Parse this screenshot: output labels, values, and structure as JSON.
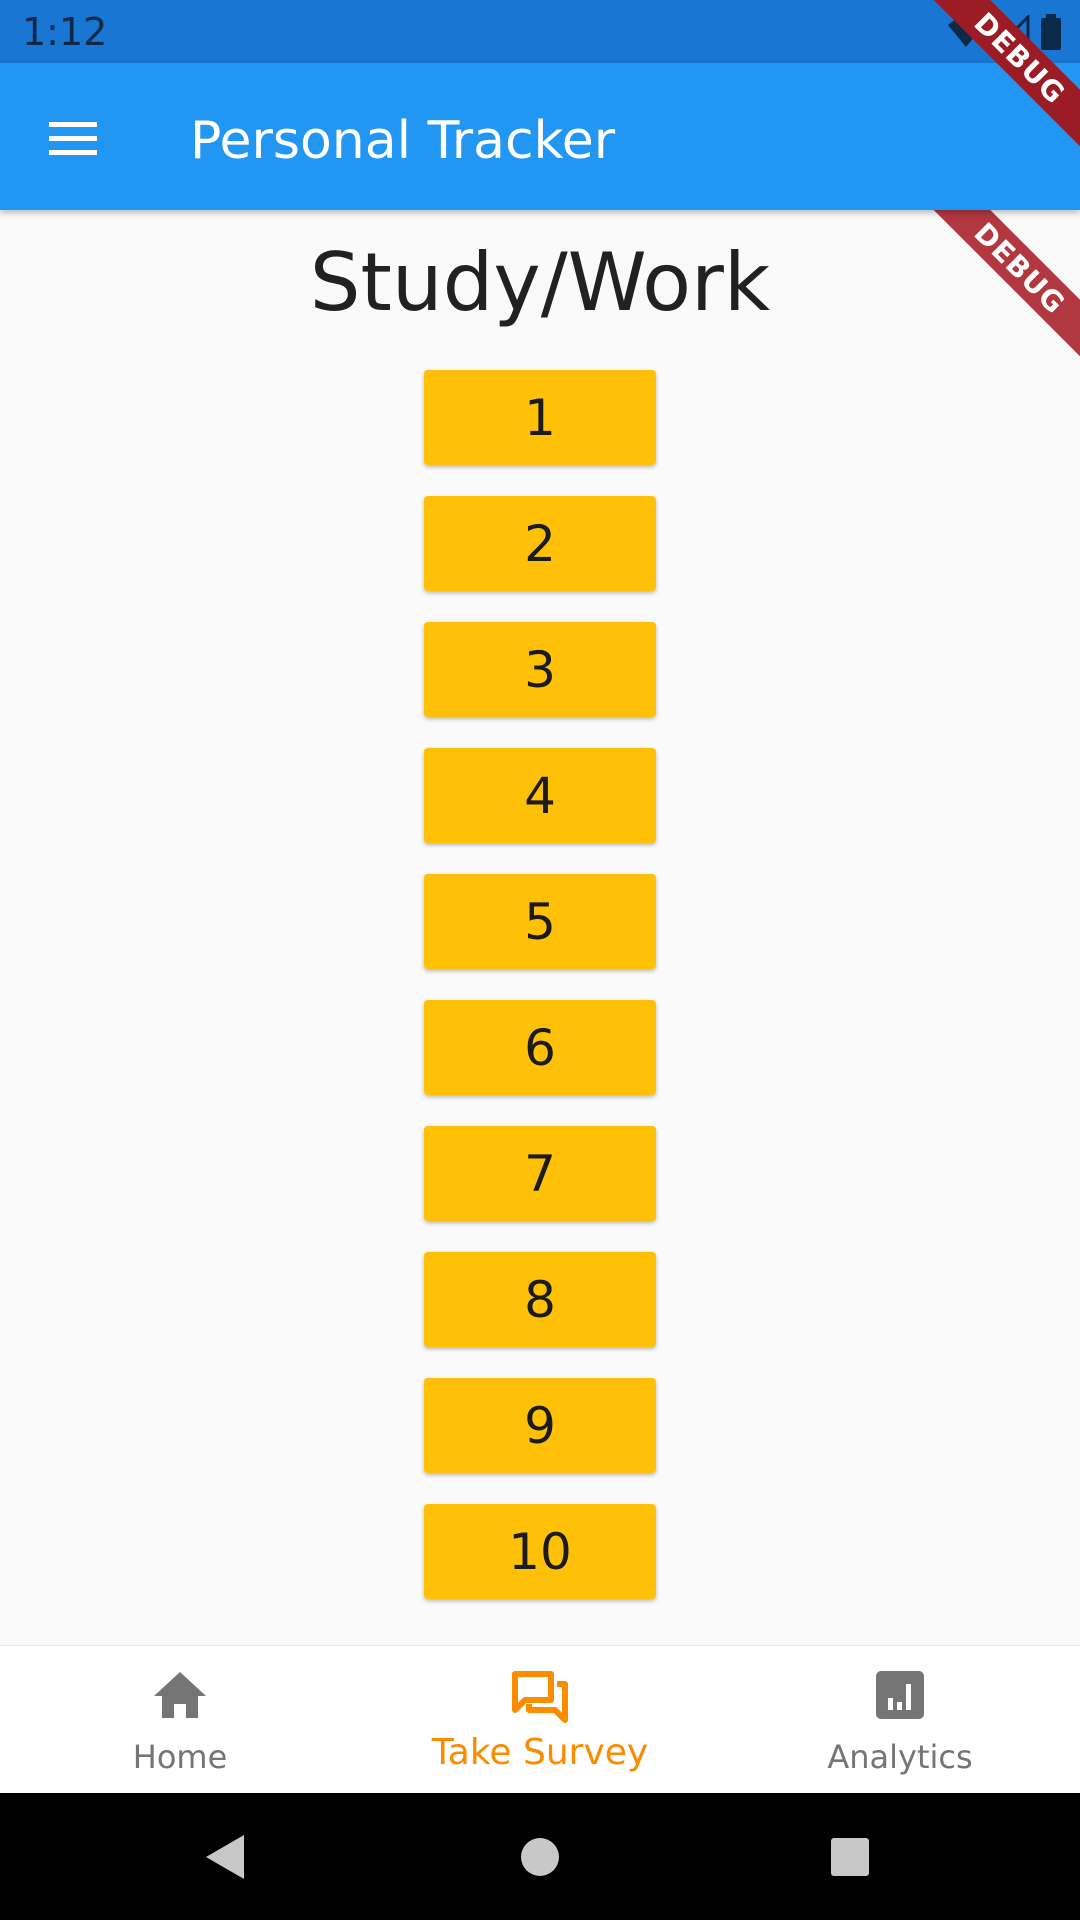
{
  "status_bar": {
    "time": "1:12"
  },
  "app_bar": {
    "title": "Personal Tracker"
  },
  "debug_banner": "DEBUG",
  "page": {
    "title": "Study/Work",
    "ratings": [
      "1",
      "2",
      "3",
      "4",
      "5",
      "6",
      "7",
      "8",
      "9",
      "10"
    ]
  },
  "bottom_nav": {
    "items": [
      {
        "label": "Home",
        "icon": "home-icon"
      },
      {
        "label": "Take Survey",
        "icon": "forum-icon",
        "active": true
      },
      {
        "label": "Analytics",
        "icon": "analytics-icon"
      }
    ]
  },
  "colors": {
    "app_bar": "#2196f3",
    "status_bar": "#1976d2",
    "button": "#ffc107",
    "active_nav": "#fb8c00"
  }
}
